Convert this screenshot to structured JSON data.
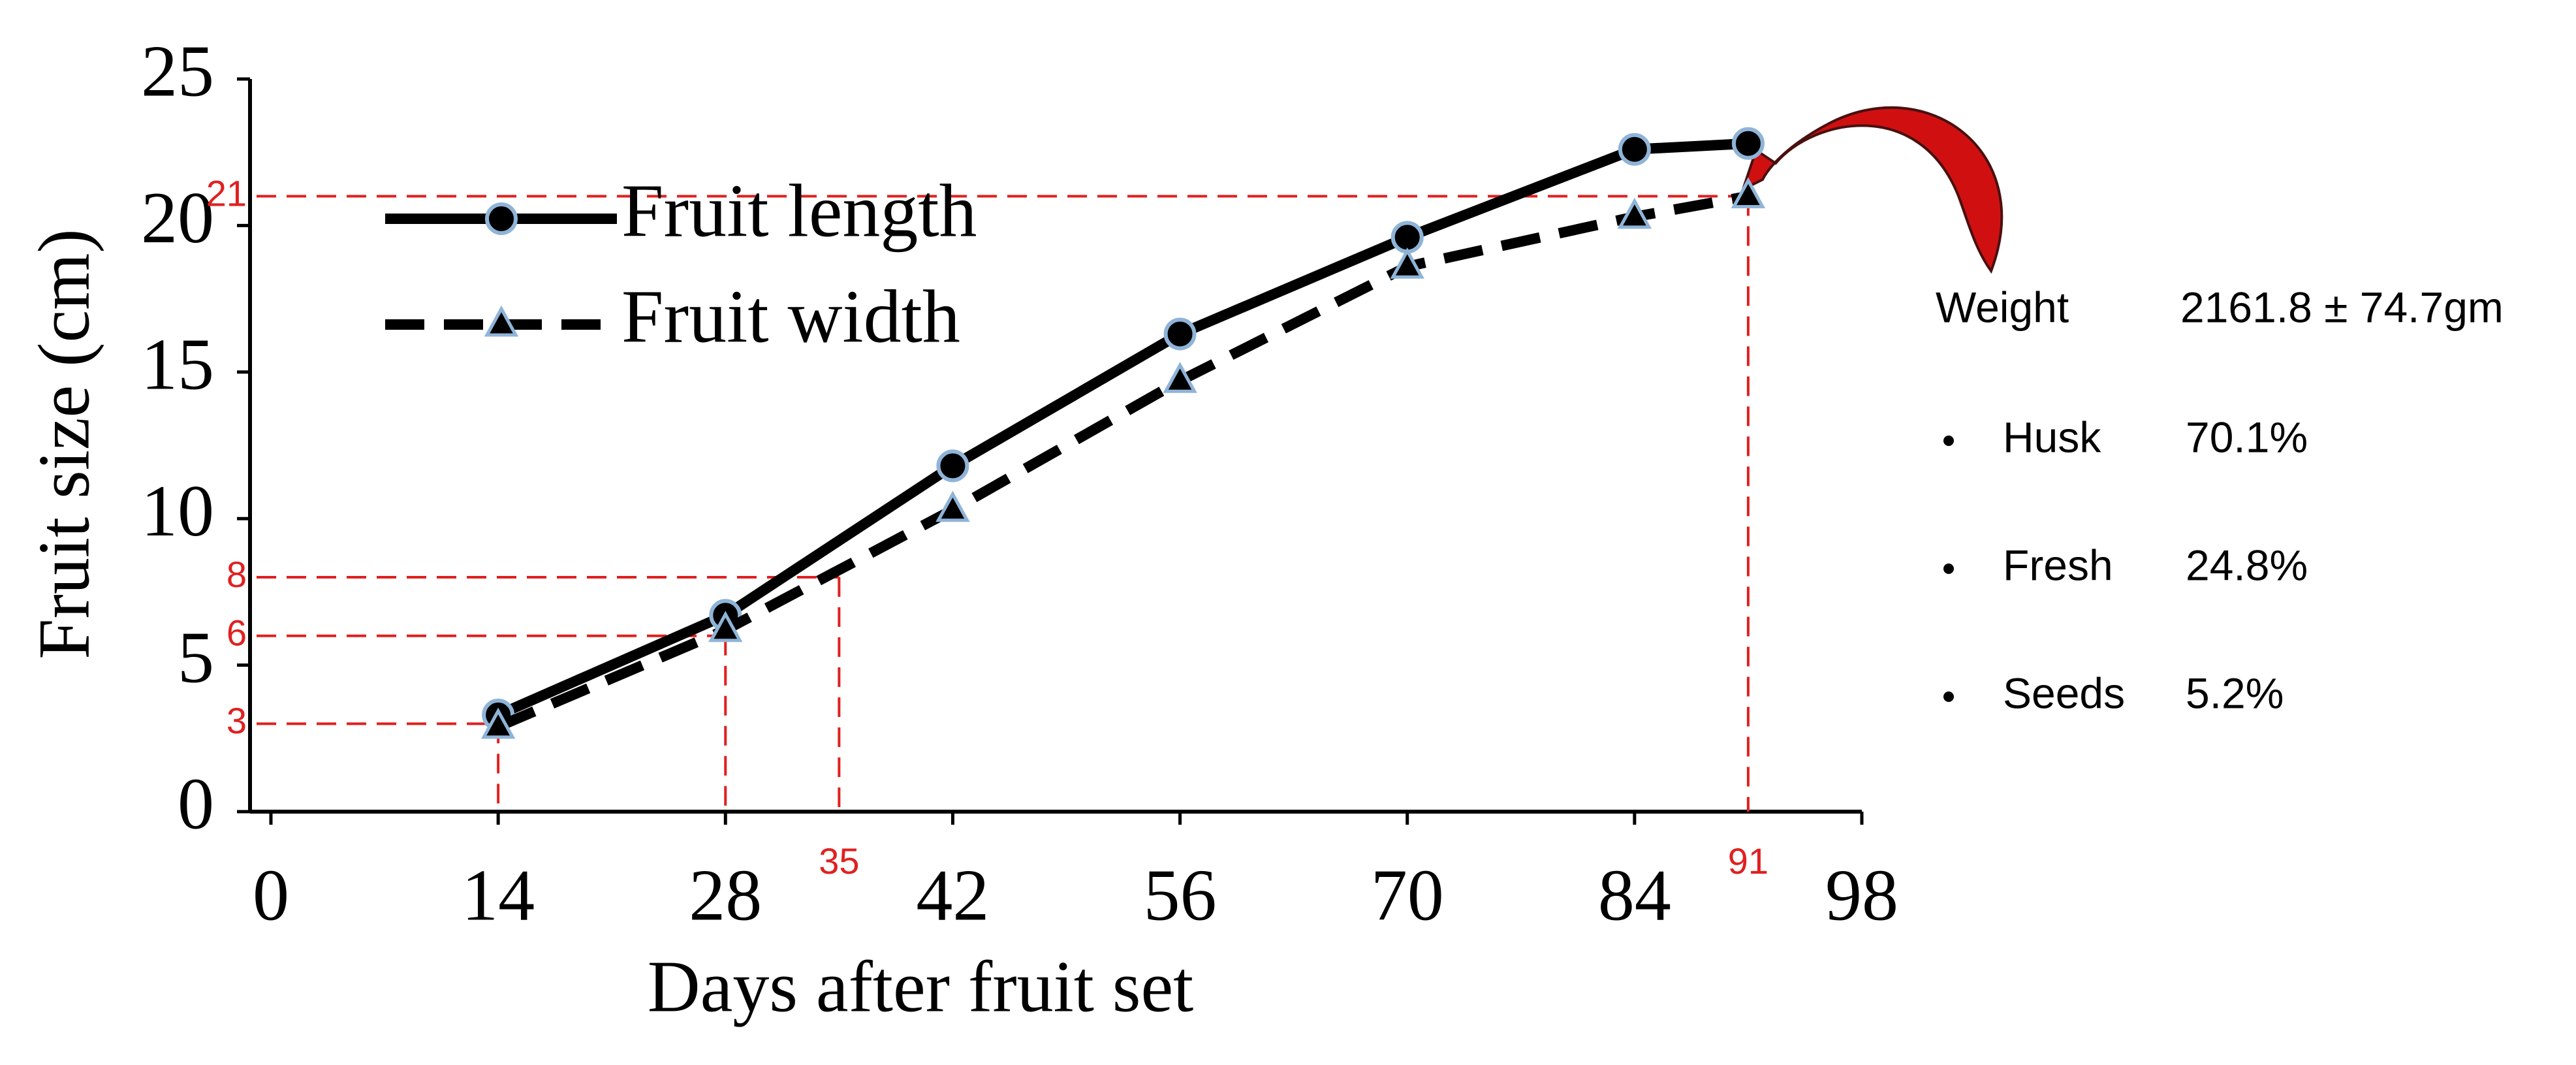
{
  "chart_data": {
    "type": "line",
    "xlabel": "Days after fruit set",
    "ylabel": "Fruit size (cm)",
    "x": [
      14,
      28,
      42,
      56,
      70,
      84,
      91
    ],
    "series": [
      {
        "name": "Fruit length",
        "color": "#000000",
        "dash": "solid",
        "marker": "circle",
        "values": [
          3.3,
          6.7,
          11.8,
          16.3,
          19.6,
          22.6,
          22.8
        ]
      },
      {
        "name": "Fruit width",
        "color": "#000000",
        "dash": "dashed",
        "marker": "triangle",
        "values": [
          2.9,
          6.2,
          10.3,
          14.7,
          18.6,
          20.3,
          21.0
        ]
      }
    ],
    "xlim": [
      0,
      98
    ],
    "ylim": [
      0,
      25
    ],
    "xticks": [
      0,
      14,
      28,
      42,
      56,
      70,
      84,
      98
    ],
    "yticks": [
      0,
      5,
      10,
      15,
      20,
      25
    ],
    "legend": "upper left",
    "guides": [
      {
        "x": 14,
        "y": 3,
        "x_label_shown": false
      },
      {
        "x": 28,
        "y": 6,
        "x_label_shown": false
      },
      {
        "x": 35,
        "y": 8,
        "x_label_shown": true
      },
      {
        "x": 91,
        "y": 21,
        "x_label_shown": true
      }
    ],
    "guide_color": "#e02020"
  },
  "side_note": {
    "weight_label": "Weight",
    "weight_value": "2161.8 ± 74.7gm",
    "items": [
      {
        "name": "Husk",
        "value": "70.1%"
      },
      {
        "name": "Fresh",
        "value": "24.8%"
      },
      {
        "name": "Seeds",
        "value": "5.2%"
      }
    ]
  }
}
